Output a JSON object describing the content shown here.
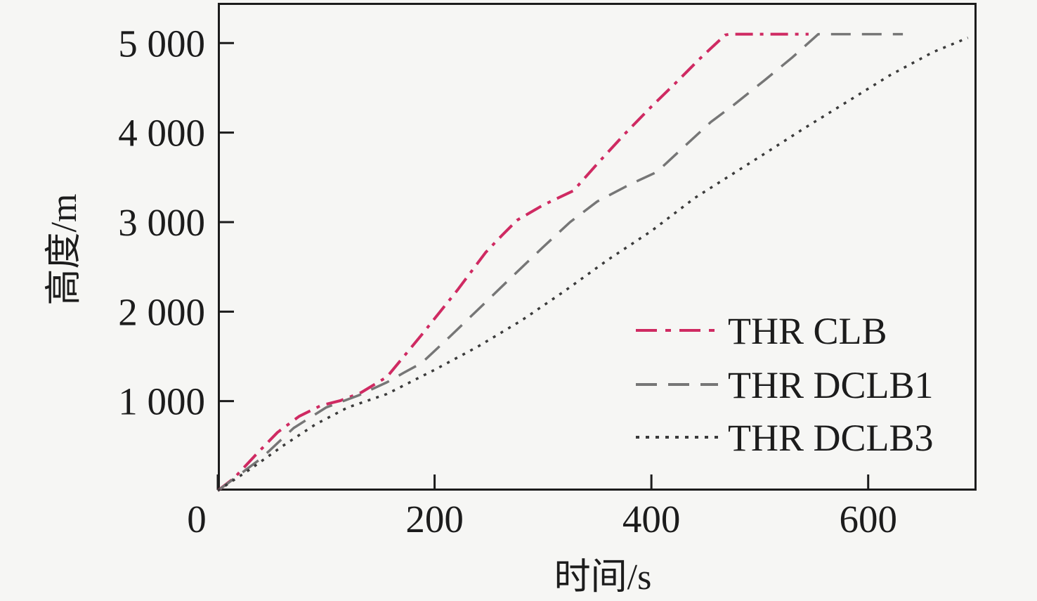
{
  "chart_data": {
    "type": "line",
    "title": "",
    "xlabel": "时间/s",
    "ylabel": "高度/m",
    "xlim": [
      0,
      700
    ],
    "ylim": [
      0,
      5450
    ],
    "grid": false,
    "legend_position": "inside-right-middle",
    "frame_color": "#1c1c1c",
    "background_color": "#f6f6f4",
    "x_ticks": [
      {
        "value": 0,
        "label": "0"
      },
      {
        "value": 200,
        "label": "200"
      },
      {
        "value": 400,
        "label": "400"
      },
      {
        "value": 600,
        "label": "600"
      }
    ],
    "y_ticks": [
      {
        "value": 1000,
        "label": "1 000"
      },
      {
        "value": 2000,
        "label": "2 000"
      },
      {
        "value": 3000,
        "label": "3 000"
      },
      {
        "value": 4000,
        "label": "4 000"
      },
      {
        "value": 5000,
        "label": "5 000"
      }
    ],
    "series": [
      {
        "name": "THR CLB",
        "color": "#cf2a62",
        "dash": "dashdot",
        "points": [
          [
            0,
            0
          ],
          [
            15,
            140
          ],
          [
            35,
            400
          ],
          [
            55,
            650
          ],
          [
            75,
            830
          ],
          [
            95,
            950
          ],
          [
            113,
            1005
          ],
          [
            132,
            1095
          ],
          [
            156,
            1270
          ],
          [
            188,
            1740
          ],
          [
            221,
            2240
          ],
          [
            247,
            2660
          ],
          [
            262,
            2850
          ],
          [
            276,
            3020
          ],
          [
            300,
            3190
          ],
          [
            314,
            3270
          ],
          [
            328,
            3350
          ],
          [
            350,
            3650
          ],
          [
            375,
            3980
          ],
          [
            400,
            4290
          ],
          [
            422,
            4550
          ],
          [
            445,
            4830
          ],
          [
            468,
            5090
          ],
          [
            472,
            5100
          ],
          [
            545,
            5100
          ]
        ]
      },
      {
        "name": "THR DCLB1",
        "color": "#767676",
        "dash": "dashed",
        "points": [
          [
            0,
            0
          ],
          [
            20,
            180
          ],
          [
            40,
            360
          ],
          [
            70,
            700
          ],
          [
            100,
            930
          ],
          [
            130,
            1065
          ],
          [
            156,
            1210
          ],
          [
            172,
            1320
          ],
          [
            188,
            1425
          ],
          [
            214,
            1720
          ],
          [
            245,
            2080
          ],
          [
            268,
            2350
          ],
          [
            300,
            2720
          ],
          [
            325,
            3000
          ],
          [
            350,
            3230
          ],
          [
            380,
            3420
          ],
          [
            405,
            3560
          ],
          [
            430,
            3840
          ],
          [
            455,
            4120
          ],
          [
            476,
            4310
          ],
          [
            505,
            4590
          ],
          [
            530,
            4840
          ],
          [
            554,
            5100
          ],
          [
            632,
            5100
          ]
        ]
      },
      {
        "name": "THR DCLB3",
        "color": "#3b3b3b",
        "dash": "dotted",
        "points": [
          [
            0,
            0
          ],
          [
            30,
            240
          ],
          [
            60,
            500
          ],
          [
            90,
            740
          ],
          [
            120,
            930
          ],
          [
            156,
            1080
          ],
          [
            200,
            1350
          ],
          [
            240,
            1610
          ],
          [
            280,
            1900
          ],
          [
            320,
            2230
          ],
          [
            360,
            2580
          ],
          [
            400,
            2900
          ],
          [
            440,
            3270
          ],
          [
            470,
            3500
          ],
          [
            500,
            3730
          ],
          [
            540,
            4040
          ],
          [
            580,
            4340
          ],
          [
            620,
            4640
          ],
          [
            660,
            4900
          ],
          [
            692,
            5060
          ]
        ]
      }
    ]
  }
}
